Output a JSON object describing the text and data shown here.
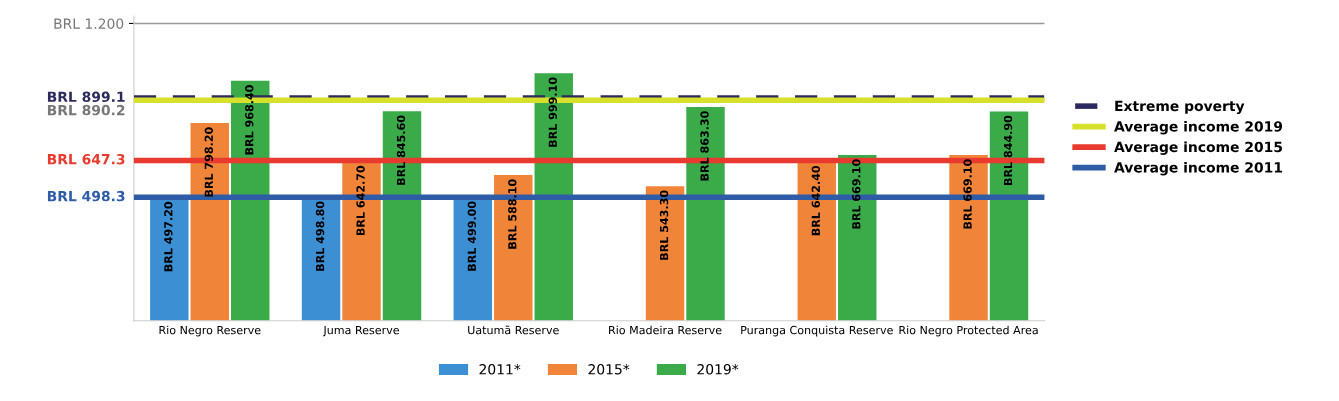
{
  "chart_data": {
    "type": "bar",
    "categories": [
      "Rio Negro Reserve",
      "Juma Reserve",
      "Uatumã Reserve",
      "Rio Madeira Reserve",
      "Puranga Conquista Reserve",
      "Rio Negro Protected Area"
    ],
    "series": [
      {
        "name": "2011*",
        "color": "#3d8fd3",
        "values": [
          497.2,
          498.8,
          499.0,
          null,
          null,
          null
        ],
        "value_labels": [
          "BRL 497.20",
          "BRL 498.80",
          "BRL 499.00",
          null,
          null,
          null
        ]
      },
      {
        "name": "2015*",
        "color": "#f08439",
        "values": [
          798.2,
          642.7,
          588.1,
          543.3,
          642.4,
          669.1
        ],
        "value_labels": [
          "BRL 798.20",
          "BRL 642.70",
          "BRL 588.10",
          "BRL 543.30",
          "BRL 642.40",
          "BRL 669.10"
        ]
      },
      {
        "name": "2019*",
        "color": "#3bab4a",
        "values": [
          968.4,
          845.6,
          999.1,
          863.3,
          669.1,
          844.9
        ],
        "value_labels": [
          "BRL 968.40",
          "BRL 845.60",
          "BRL 999.10",
          "BRL 863.30",
          "BRL 669.10",
          "BRL 844.90"
        ]
      }
    ],
    "ref_lines": [
      {
        "axis": "y",
        "value": 899.1,
        "label": "BRL 899.1",
        "color": "#2b2a5e",
        "line_style": "dashed"
      },
      {
        "axis": "y",
        "value": 890.2,
        "label": "BRL 890.2",
        "color": "#d7e02a"
      },
      {
        "axis": "y",
        "value": 647.3,
        "label": "BRL 647.3",
        "color": "#e83a2e"
      },
      {
        "axis": "y",
        "value": 498.3,
        "label": "BRL 498.3",
        "color": "#2f5ca6"
      }
    ],
    "annotations": [
      "Extreme poverty",
      "Average income 2019",
      "Average income 2015",
      "Average income 2011"
    ],
    "ylim": [
      0,
      1230
    ],
    "yticks": [
      {
        "value": 1200,
        "label": "BRL 1.200"
      }
    ],
    "grid": "y",
    "legend": "bottom"
  }
}
